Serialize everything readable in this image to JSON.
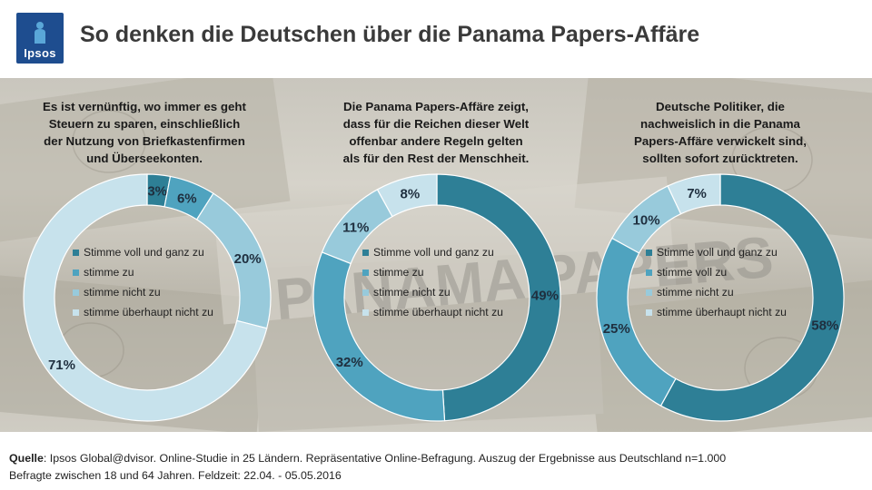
{
  "header": {
    "logo_text": "Ipsos",
    "title": "So denken die Deutschen über die Panama Papers-Affäre"
  },
  "background": {
    "watermark_text": "PANAMA PAPERS"
  },
  "colors": {
    "stimme_voll_und_ganz_zu": "#2e7f96",
    "stimme_zu": "#4fa3bf",
    "stimme_nicht_zu": "#98cadb",
    "stimme_ueberhaupt_nicht_zu": "#c7e2ec",
    "logo": "#1e4d8f"
  },
  "chart_data": [
    {
      "type": "pie",
      "title": "Es ist vernünftig, wo immer es geht\nSteuern zu sparen, einschließlich\nder Nutzung von Briefkastenfirmen\nund Überseekonten.",
      "categories": [
        "Stimme voll und ganz zu",
        "stimme zu",
        "stimme nicht zu",
        "stimme überhaupt nicht zu"
      ],
      "values": [
        3,
        6,
        20,
        71
      ],
      "data_labels": [
        "3%",
        "6%",
        "20%",
        "71%"
      ],
      "legend_placement": "center"
    },
    {
      "type": "pie",
      "title": "Die Panama Papers-Affäre zeigt,\ndass für die Reichen dieser Welt\noffenbar andere Regeln gelten\nals für den Rest der Menschheit.",
      "categories": [
        "Stimme voll und ganz zu",
        "stimme zu",
        "stimme nicht zu",
        "stimme überhaupt nicht zu"
      ],
      "values": [
        49,
        32,
        11,
        8
      ],
      "data_labels": [
        "49%",
        "32%",
        "11%",
        "8%"
      ],
      "legend_placement": "center"
    },
    {
      "type": "pie",
      "title": "Deutsche Politiker, die\nnachweislich in die Panama\nPapers-Affäre verwickelt sind,\nsollten sofort zurücktreten.",
      "categories": [
        "Stimme voll und ganz zu",
        "stimme voll zu",
        "stimme nicht zu",
        "stimme überhaupt nicht zu"
      ],
      "values": [
        58,
        25,
        10,
        7
      ],
      "data_labels": [
        "58%",
        "25%",
        "10%",
        "7%"
      ],
      "legend_placement": "center"
    }
  ],
  "footer": {
    "source_label": "Quelle",
    "source_text": ": Ipsos Global@dvisor. Online-Studie in 25 Ländern.  Repräsentative Online-Befragung. Auszug der Ergebnisse aus Deutschland n=1.000",
    "line2": "Befragte zwischen 18 und 64 Jahren. Feldzeit: 22.04.  - 05.05.2016"
  }
}
